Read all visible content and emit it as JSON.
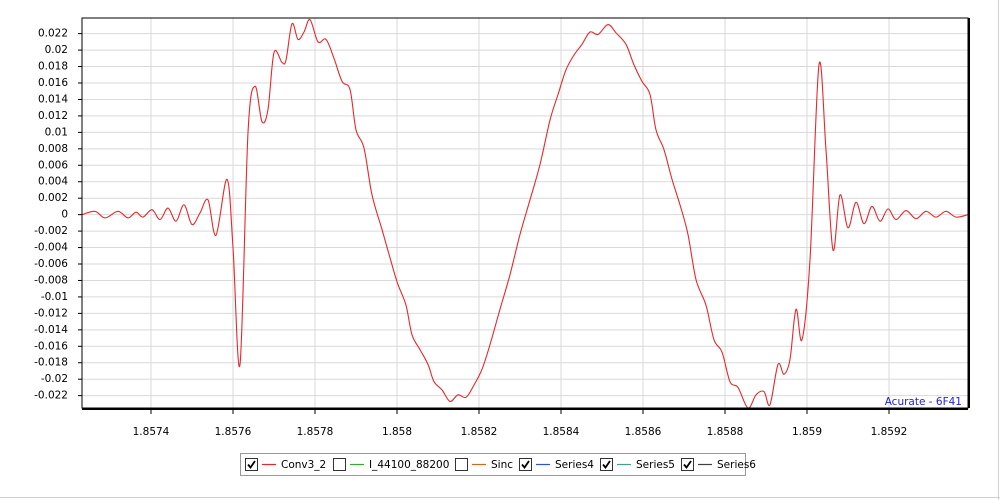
{
  "chart_data": {
    "type": "line",
    "annotation": "Acurate - 6F41",
    "x": [
      1.8572317,
      1.8572634,
      1.8572878,
      1.8573195,
      1.8573439,
      1.8573634,
      1.8573805,
      1.8574024,
      1.857422,
      1.8574415,
      1.857461,
      1.8574805,
      1.8575,
      1.8575195,
      1.857539,
      1.8575585,
      1.8575854,
      1.8576,
      1.8576171,
      1.8576366,
      1.8576537,
      1.8576707,
      1.8576854,
      1.8577,
      1.8577195,
      1.8577293,
      1.8577439,
      1.8577585,
      1.8577732,
      1.8577878,
      1.8578073,
      1.8578268,
      1.8578463,
      1.8578659,
      1.8578854,
      1.8579,
      1.8579195,
      1.857939,
      1.8579634,
      1.8579878,
      1.8580024,
      1.8580219,
      1.8580366,
      1.8580561,
      1.8580756,
      1.8580902,
      1.8581097,
      1.8581293,
      1.8581488,
      1.8581683,
      1.8581878,
      1.8582073,
      1.8582268,
      1.8582512,
      1.8582756,
      1.8583,
      1.8583244,
      1.8583488,
      1.8583732,
      1.8583927,
      1.8584122,
      1.8584317,
      1.8584512,
      1.8584707,
      1.8584902,
      1.8585146,
      1.8585341,
      1.8585585,
      1.858578,
      1.8585975,
      1.8586171,
      1.8586317,
      1.8586512,
      1.8586707,
      1.8586902,
      1.8587097,
      1.8587293,
      1.8587536,
      1.8587731,
      1.8587927,
      1.8588122,
      1.8588317,
      1.8588561,
      1.8588756,
      1.8588951,
      1.8589097,
      1.8589293,
      1.8589439,
      1.8589585,
      1.8589732,
      1.8589878,
      1.8590073,
      1.8590292,
      1.8590463,
      1.8590634,
      1.8590805,
      1.8591,
      1.8591195,
      1.859139,
      1.8591585,
      1.8591781,
      1.8591976,
      1.8592171,
      1.8592415,
      1.8592659,
      1.8592902,
      1.8593146,
      1.859339,
      1.8593634,
      1.8593927
    ],
    "series": [
      {
        "name": "Conv3_2",
        "color": "#e8272b",
        "checked": true,
        "values": [
          0,
          0.0004,
          -0.0004,
          0.0004,
          -0.0004,
          0.0003,
          -0.0003,
          0.0006,
          -0.0006,
          0.0008,
          -0.0008,
          0.0012,
          -0.0012,
          0.0002,
          0.0018,
          -0.0025,
          0.0043,
          -0.004,
          -0.0182,
          0.01,
          0.0156,
          0.0113,
          0.0128,
          0.0197,
          0.0185,
          0.0188,
          0.0232,
          0.0213,
          0.0222,
          0.0237,
          0.021,
          0.0213,
          0.019,
          0.0162,
          0.0152,
          0.0103,
          0.0081,
          0.0024,
          -0.0018,
          -0.0061,
          -0.0085,
          -0.011,
          -0.0146,
          -0.0164,
          -0.0182,
          -0.0203,
          -0.0213,
          -0.0227,
          -0.0219,
          -0.0222,
          -0.0207,
          -0.0188,
          -0.0158,
          -0.0115,
          -0.0073,
          -0.0024,
          0.0018,
          0.0061,
          0.0115,
          0.0146,
          0.0176,
          0.0194,
          0.0207,
          0.0222,
          0.0219,
          0.0231,
          0.0221,
          0.0207,
          0.0182,
          0.0162,
          0.0146,
          0.0103,
          0.0079,
          0.0043,
          0.0012,
          -0.0024,
          -0.0079,
          -0.011,
          -0.0152,
          -0.0167,
          -0.0203,
          -0.021,
          -0.0235,
          -0.0219,
          -0.0215,
          -0.0231,
          -0.0182,
          -0.0194,
          -0.0176,
          -0.0115,
          -0.0152,
          -0.0055,
          0.0182,
          0.0079,
          -0.0043,
          0.0024,
          -0.0016,
          0.0015,
          -0.0011,
          0.001,
          -0.0008,
          0.0007,
          -0.0006,
          0.0005,
          -0.0005,
          0.0004,
          -0.0003,
          0.0004,
          -0.0003,
          0
        ]
      },
      {
        "name": "I_44100_88200",
        "color": "#3aa53a",
        "checked": false
      },
      {
        "name": "Sinc",
        "color": "#d2691e",
        "checked": false
      },
      {
        "name": "Series4",
        "color": "#3050e0",
        "checked": true
      },
      {
        "name": "Series5",
        "color": "#40a090",
        "checked": true
      },
      {
        "name": "Series6",
        "color": "#404040",
        "checked": true
      }
    ],
    "xlim": [
      1.8572317,
      1.8593927
    ],
    "xticks": [
      1.8574,
      1.8576,
      1.8578,
      1.858,
      1.8582,
      1.8584,
      1.8586,
      1.8588,
      1.859,
      1.8592
    ],
    "ylim": [
      -0.0235,
      0.0239
    ],
    "yticks": [
      -0.022,
      -0.02,
      -0.018,
      -0.016,
      -0.014,
      -0.012,
      -0.01,
      -0.008,
      -0.006,
      -0.004,
      -0.002,
      0,
      0.002,
      0.004,
      0.006,
      0.008,
      0.01,
      0.012,
      0.014,
      0.016,
      0.018,
      0.02,
      0.022
    ],
    "grid": true
  }
}
